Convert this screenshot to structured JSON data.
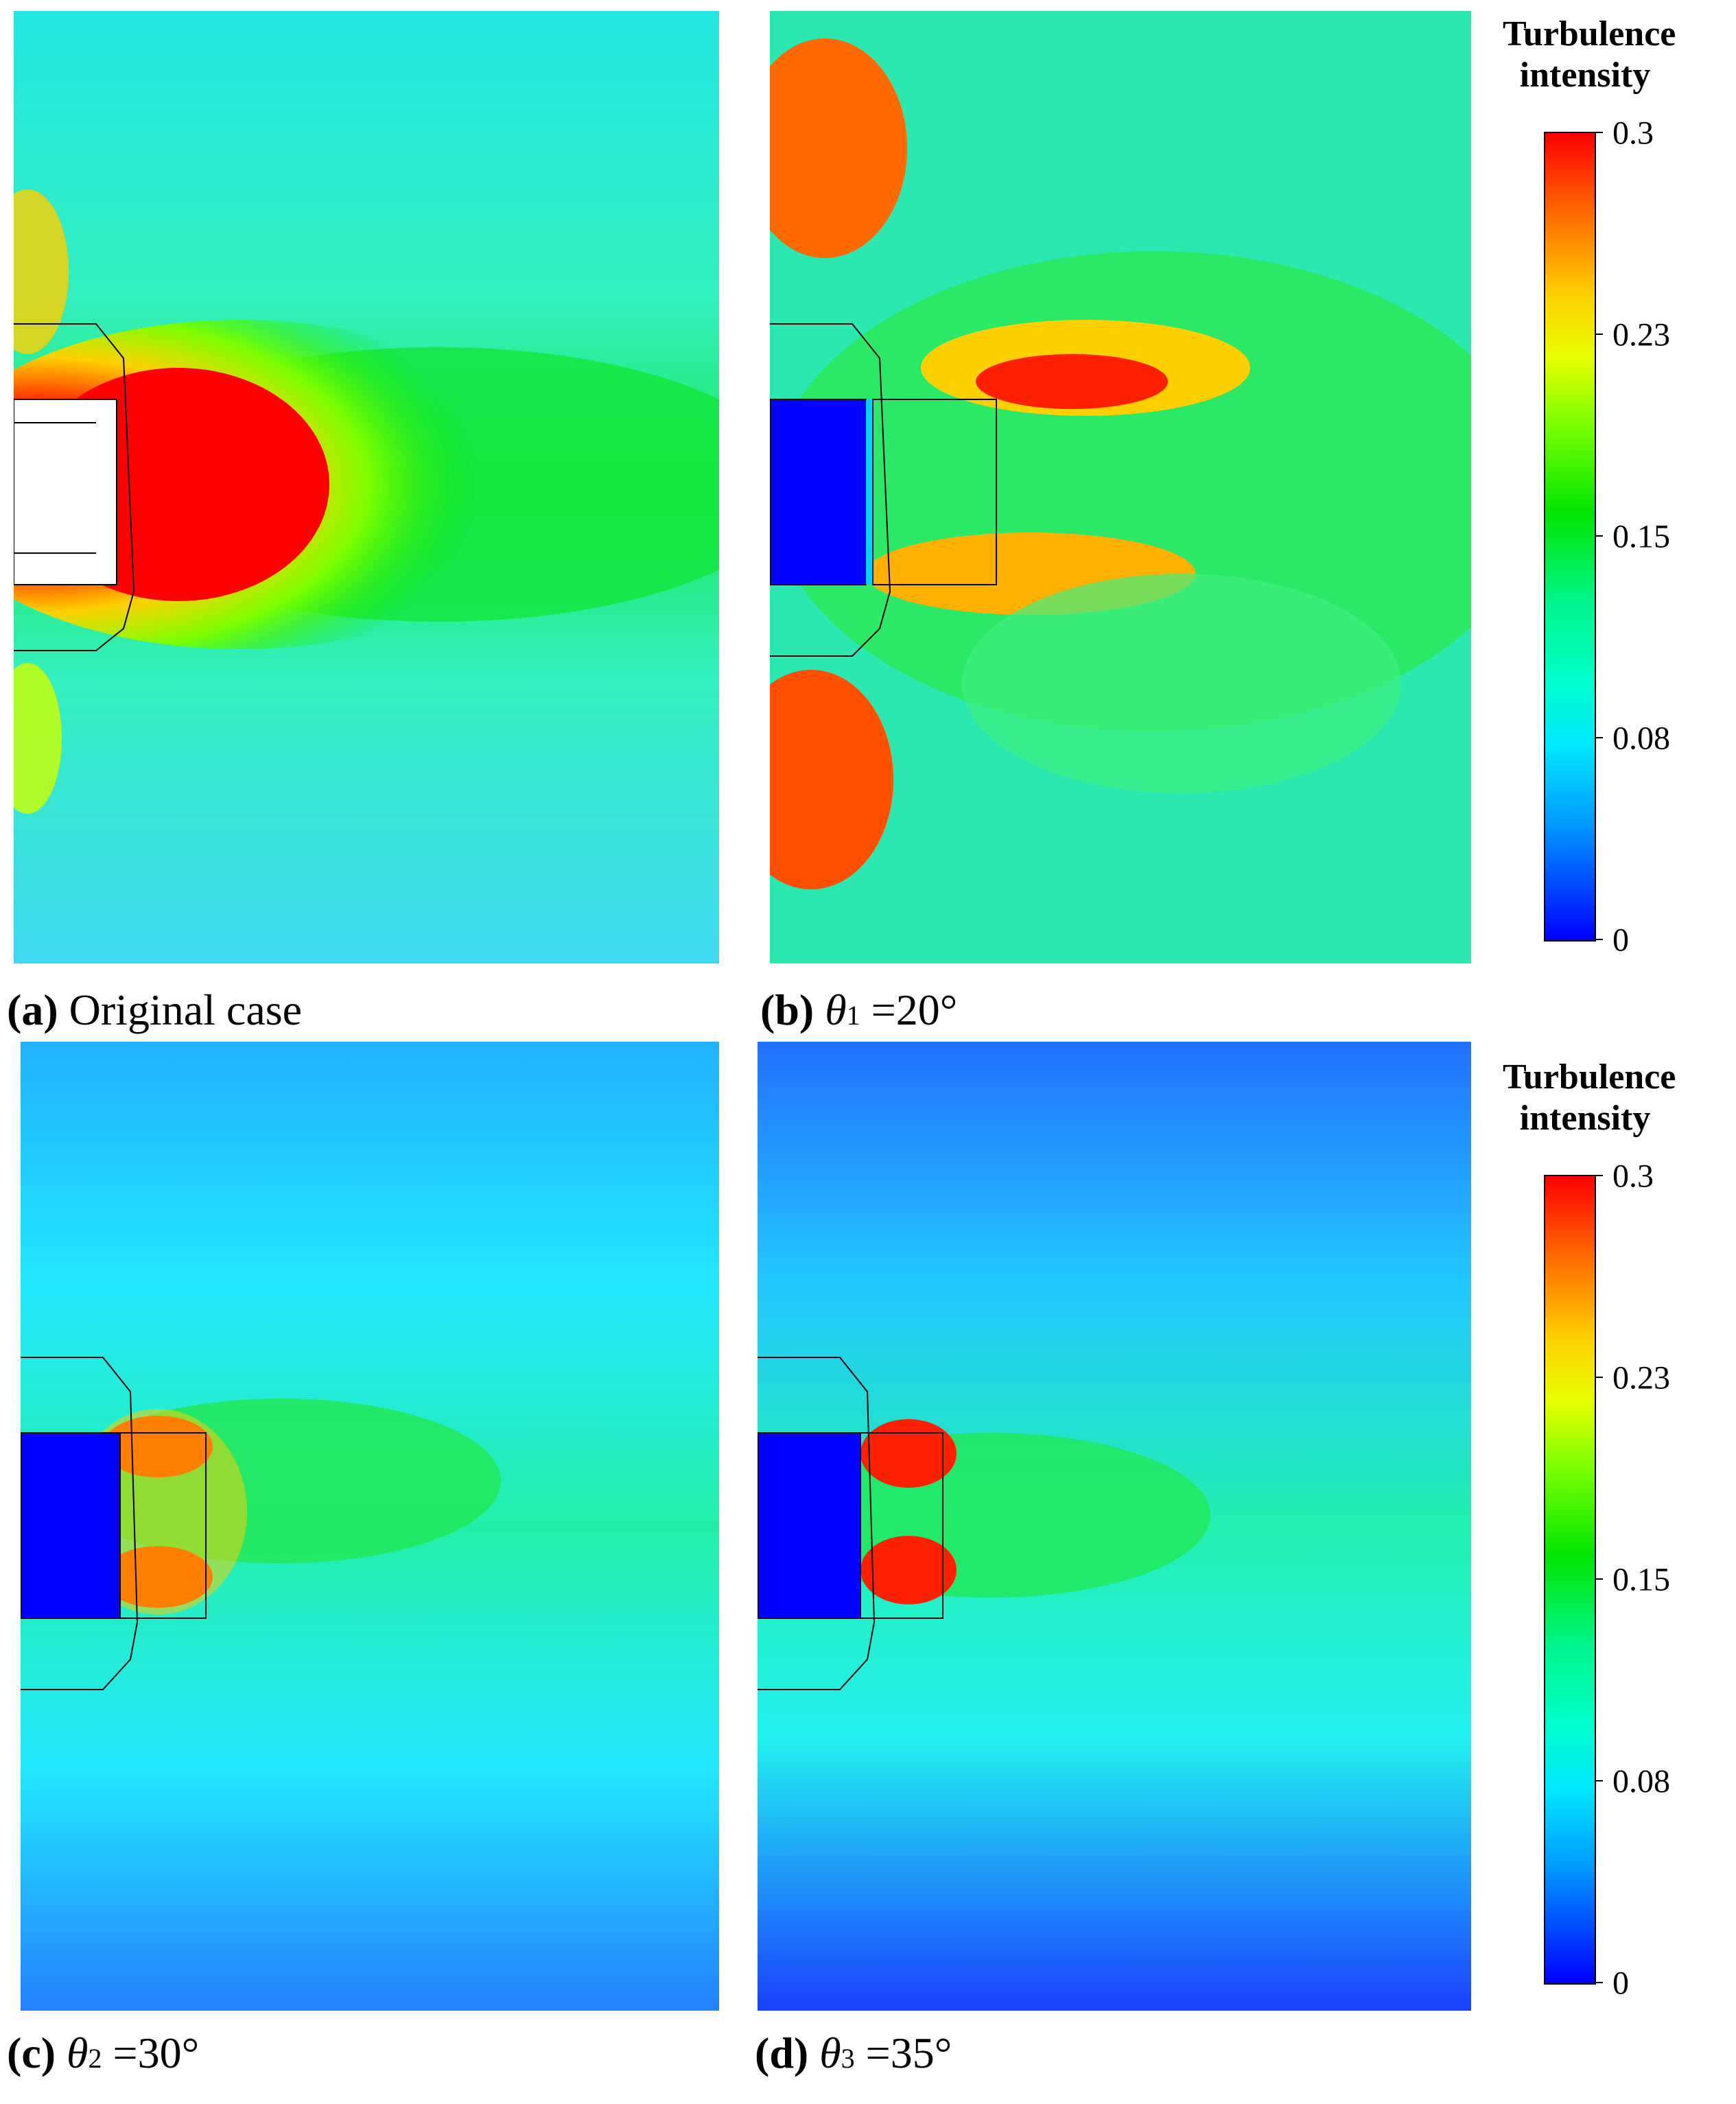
{
  "panels": [
    {
      "letter": "(a)",
      "theta": "",
      "sub": "",
      "rest": "Original case"
    },
    {
      "letter": "(b)",
      "theta": "θ",
      "sub": "1",
      "rest": " =20°"
    },
    {
      "letter": "(c)",
      "theta": "θ",
      "sub": "2",
      "rest": " =30°"
    },
    {
      "letter": "(d)",
      "theta": "θ",
      "sub": "3",
      "rest": " =35°"
    }
  ],
  "legend": {
    "title_line1": "Turbulence",
    "title_line2": "intensity",
    "ticks": [
      "0.3",
      "0.23",
      "0.15",
      "0.08",
      "0"
    ]
  },
  "colors": {
    "high": "#ff0000",
    "mid_high": "#ffff00",
    "mid": "#00e600",
    "mid_low": "#00ffe0",
    "low": "#0000ff"
  }
}
